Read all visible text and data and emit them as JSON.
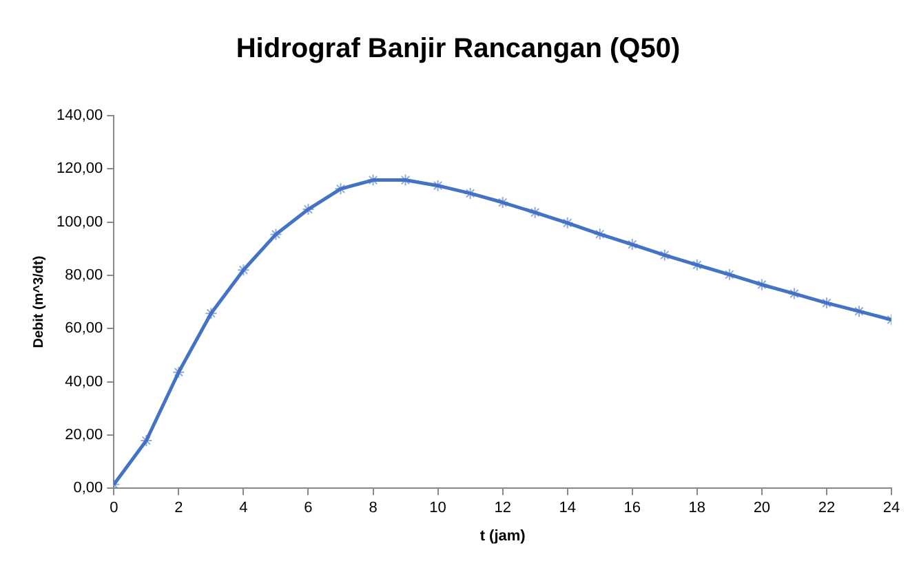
{
  "chart_data": {
    "type": "line",
    "title": "Hidrograf Banjir Rancangan (Q50)",
    "xlabel": "t (jam)",
    "ylabel": "Debit (m^3/dt)",
    "x": [
      0,
      1,
      2,
      3,
      4,
      5,
      6,
      7,
      8,
      9,
      10,
      11,
      12,
      13,
      14,
      15,
      16,
      17,
      18,
      19,
      20,
      21,
      22,
      23,
      24
    ],
    "series": [
      {
        "color": "#4472c4",
        "values": [
          1.4,
          17.9,
          43.6,
          65.7,
          82.0,
          95.4,
          104.8,
          112.5,
          115.8,
          115.8,
          113.7,
          110.8,
          107.4,
          103.6,
          99.7,
          95.5,
          91.6,
          87.6,
          83.9,
          80.3,
          76.5,
          73.1,
          69.6,
          66.5,
          63.3
        ]
      }
    ],
    "xlim": [
      0,
      24
    ],
    "xticks": [
      0,
      2,
      4,
      6,
      8,
      10,
      12,
      14,
      16,
      18,
      20,
      22,
      24
    ],
    "ylim": [
      0,
      140
    ],
    "yticks": [
      {
        "value": 0,
        "label": "0,00"
      },
      {
        "value": 20,
        "label": "20,00"
      },
      {
        "value": 40,
        "label": "40,00"
      },
      {
        "value": 60,
        "label": "60,00"
      },
      {
        "value": 80,
        "label": "80,00"
      },
      {
        "value": 100,
        "label": "100,00"
      },
      {
        "value": 120,
        "label": "120,00"
      },
      {
        "value": 140,
        "label": "140,00"
      }
    ],
    "grid": false,
    "legend": false,
    "marker": "cross",
    "line_style": "solid"
  }
}
